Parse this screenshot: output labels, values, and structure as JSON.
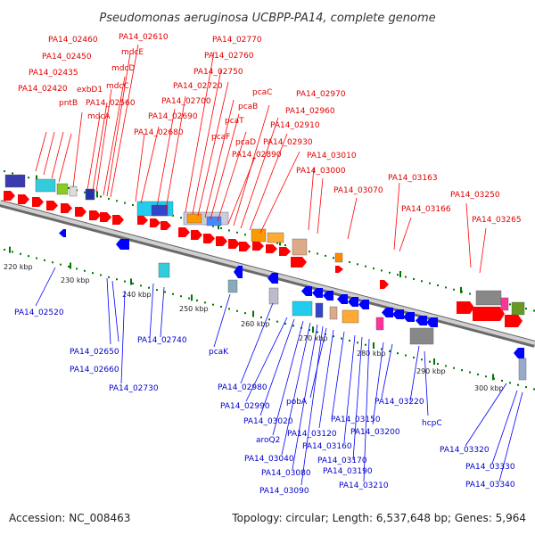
{
  "title": "Pseudomonas aeruginosa UCBPP-PA14, complete genome",
  "footer": {
    "accession": "Accession: NC_008463",
    "summary": "Topology: circular; Length: 6,537,648 bp; Genes: 5,964"
  },
  "colors": {
    "forward_strand": "#ff0000",
    "reverse_strand": "#0000ff",
    "backbone": "#aaaaaa",
    "tick": "#007700"
  },
  "scale_labels": [
    "220 kbp",
    "230 kbp",
    "240 kbp",
    "250 kbp",
    "260 kbp",
    "270 kbp",
    "280 kbp",
    "290 kbp",
    "300 kbp"
  ],
  "top_labels": [
    "PA14_02460",
    "PA14_02610",
    "PA14_02770",
    "PA14_02450",
    "mdcE",
    "PA14_02760",
    "PA14_02435",
    "mdcD",
    "PA14_02750",
    "PA14_02420",
    "exbD1",
    "mdcC",
    "PA14_02720",
    "pcaC",
    "PA14_02970",
    "pntB",
    "PA14_02560",
    "PA14_02700",
    "pcaB",
    "PA14_02960",
    "mdcA",
    "PA14_02690",
    "pcaT",
    "PA14_02910",
    "PA14_02680",
    "pcaF",
    "pcaD",
    "PA14_02930",
    "PA14_02890",
    "PA14_03010",
    "PA14_03000",
    "PA14_03163",
    "PA14_03070",
    "PA14_03250",
    "PA14_03166",
    "PA14_03265"
  ],
  "bottom_labels": [
    "PA14_02520",
    "PA14_02740",
    "PA14_02650",
    "pcaK",
    "PA14_02660",
    "PA14_02730",
    "PA14_02980",
    "PA14_02990",
    "pobA",
    "PA14_03220",
    "PA14_03020",
    "PA14_03150",
    "hcpC",
    "aroQ2",
    "PA14_03120",
    "PA14_03200",
    "PA14_03160",
    "PA14_03040",
    "PA14_03170",
    "PA14_03320",
    "PA14_03080",
    "PA14_03190",
    "PA14_03330",
    "PA14_03210",
    "PA14_03090",
    "PA14_03340"
  ]
}
